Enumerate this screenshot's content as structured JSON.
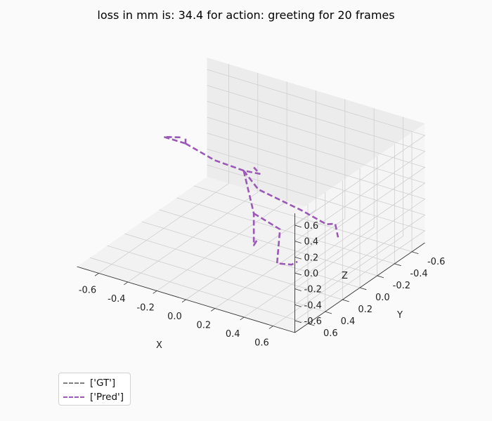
{
  "title": "loss in mm is: 34.4 for action: greeting for 20 frames",
  "chart_data": {
    "type": "line3d",
    "title": "loss in mm is: 34.4 for action: greeting for 20 frames",
    "xlabel": "X",
    "ylabel": "Y",
    "zlabel": "Z",
    "xlim": [
      -0.75,
      0.75
    ],
    "ylim": [
      -0.75,
      0.75
    ],
    "zlim": [
      -0.75,
      0.75
    ],
    "x_ticks": [
      "-0.6",
      "-0.4",
      "-0.2",
      "0.0",
      "0.2",
      "0.4",
      "0.6"
    ],
    "y_ticks": [
      "-0.6",
      "-0.4",
      "-0.2",
      "0.0",
      "0.2",
      "0.4",
      "0.6"
    ],
    "z_ticks": [
      "-0.6",
      "-0.4",
      "-0.2",
      "0.0",
      "0.2",
      "0.4",
      "0.6"
    ],
    "grid": true,
    "legend_position": "lower-left",
    "series": [
      {
        "name": "['GT']",
        "color": "#808080",
        "style": "dashed",
        "segments": []
      },
      {
        "name": "['Pred']",
        "color": "#9b59b6",
        "style": "dashed",
        "segments": [
          [
            [
              -0.45,
              0.0,
              0.4
            ],
            [
              -0.6,
              0.0,
              0.4
            ],
            [
              -0.48,
              0.0,
              0.46
            ]
          ],
          [
            [
              -0.45,
              0.0,
              0.4
            ],
            [
              -0.45,
              0.0,
              0.46
            ]
          ],
          [
            [
              -0.45,
              0.0,
              0.4
            ],
            [
              -0.25,
              0.0,
              0.3
            ],
            [
              -0.05,
              0.0,
              0.28
            ],
            [
              0.06,
              0.0,
              0.3
            ],
            [
              0.02,
              0.0,
              0.36
            ]
          ],
          [
            [
              -0.05,
              0.0,
              0.28
            ],
            [
              0.05,
              0.0,
              0.1
            ],
            [
              0.35,
              0.0,
              0.0
            ],
            [
              0.52,
              0.0,
              -0.08
            ],
            [
              0.58,
              0.0,
              -0.04
            ],
            [
              0.6,
              0.0,
              -0.2
            ]
          ],
          [
            [
              -0.05,
              0.0,
              0.28
            ],
            [
              0.02,
              0.0,
              -0.22
            ],
            [
              0.02,
              0.0,
              -0.62
            ],
            [
              0.04,
              0.0,
              -0.55
            ]
          ],
          [
            [
              0.02,
              0.0,
              -0.22
            ],
            [
              0.2,
              0.0,
              -0.32
            ],
            [
              0.18,
              0.0,
              -0.76
            ],
            [
              0.28,
              0.0,
              -0.72
            ],
            [
              0.32,
              0.0,
              -0.66
            ]
          ]
        ]
      }
    ]
  }
}
